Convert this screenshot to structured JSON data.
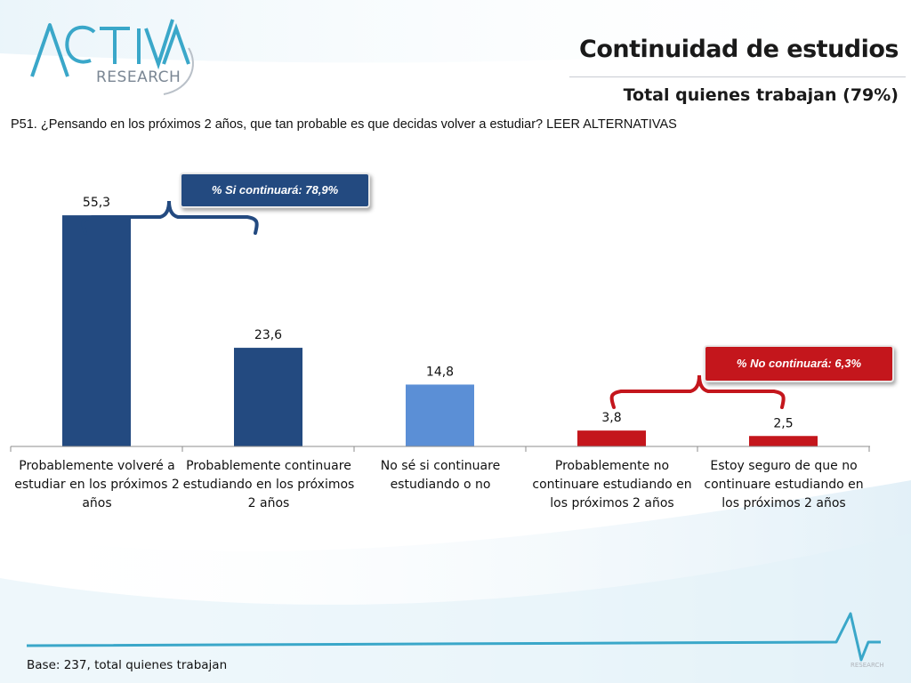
{
  "logo": {
    "main": "ACTIVA",
    "sub": "RESEARCH"
  },
  "header": {
    "title": "Continuidad de estudios",
    "subtitle": "Total quienes trabajan (79%)"
  },
  "question": "P51. ¿Pensando en los próximos 2 años, que tan probable es que decidas volver a estudiar? LEER ALTERNATIVAS",
  "callouts": {
    "si": "% Si continuará:  78,9%",
    "no": "% No continuará: 6,3%"
  },
  "colors": {
    "dark_blue": "#234a80",
    "light_blue": "#5b8fd6",
    "red": "#c4161c"
  },
  "chart_data": {
    "type": "bar",
    "categories": [
      "Probablemente volveré a estudiar en los próximos 2 años",
      "Probablemente continuare estudiando en los próximos 2 años",
      "No sé si continuare estudiando o no",
      "Probablemente no continuare estudiando en los próximos 2 años",
      "Estoy seguro de que no continuare estudiando en los próximos 2 años"
    ],
    "values": [
      55.3,
      23.6,
      14.8,
      3.8,
      2.5
    ],
    "value_labels": [
      "55,3",
      "23,6",
      "14,8",
      "3,8",
      "2,5"
    ],
    "bar_colors": [
      "#234a80",
      "#234a80",
      "#5b8fd6",
      "#c4161c",
      "#c4161c"
    ],
    "ylim": [
      0,
      60
    ],
    "grid": false,
    "legend": "none"
  },
  "footnote": "Base: 237, total quienes trabajan",
  "watermark": "RESEARCH"
}
